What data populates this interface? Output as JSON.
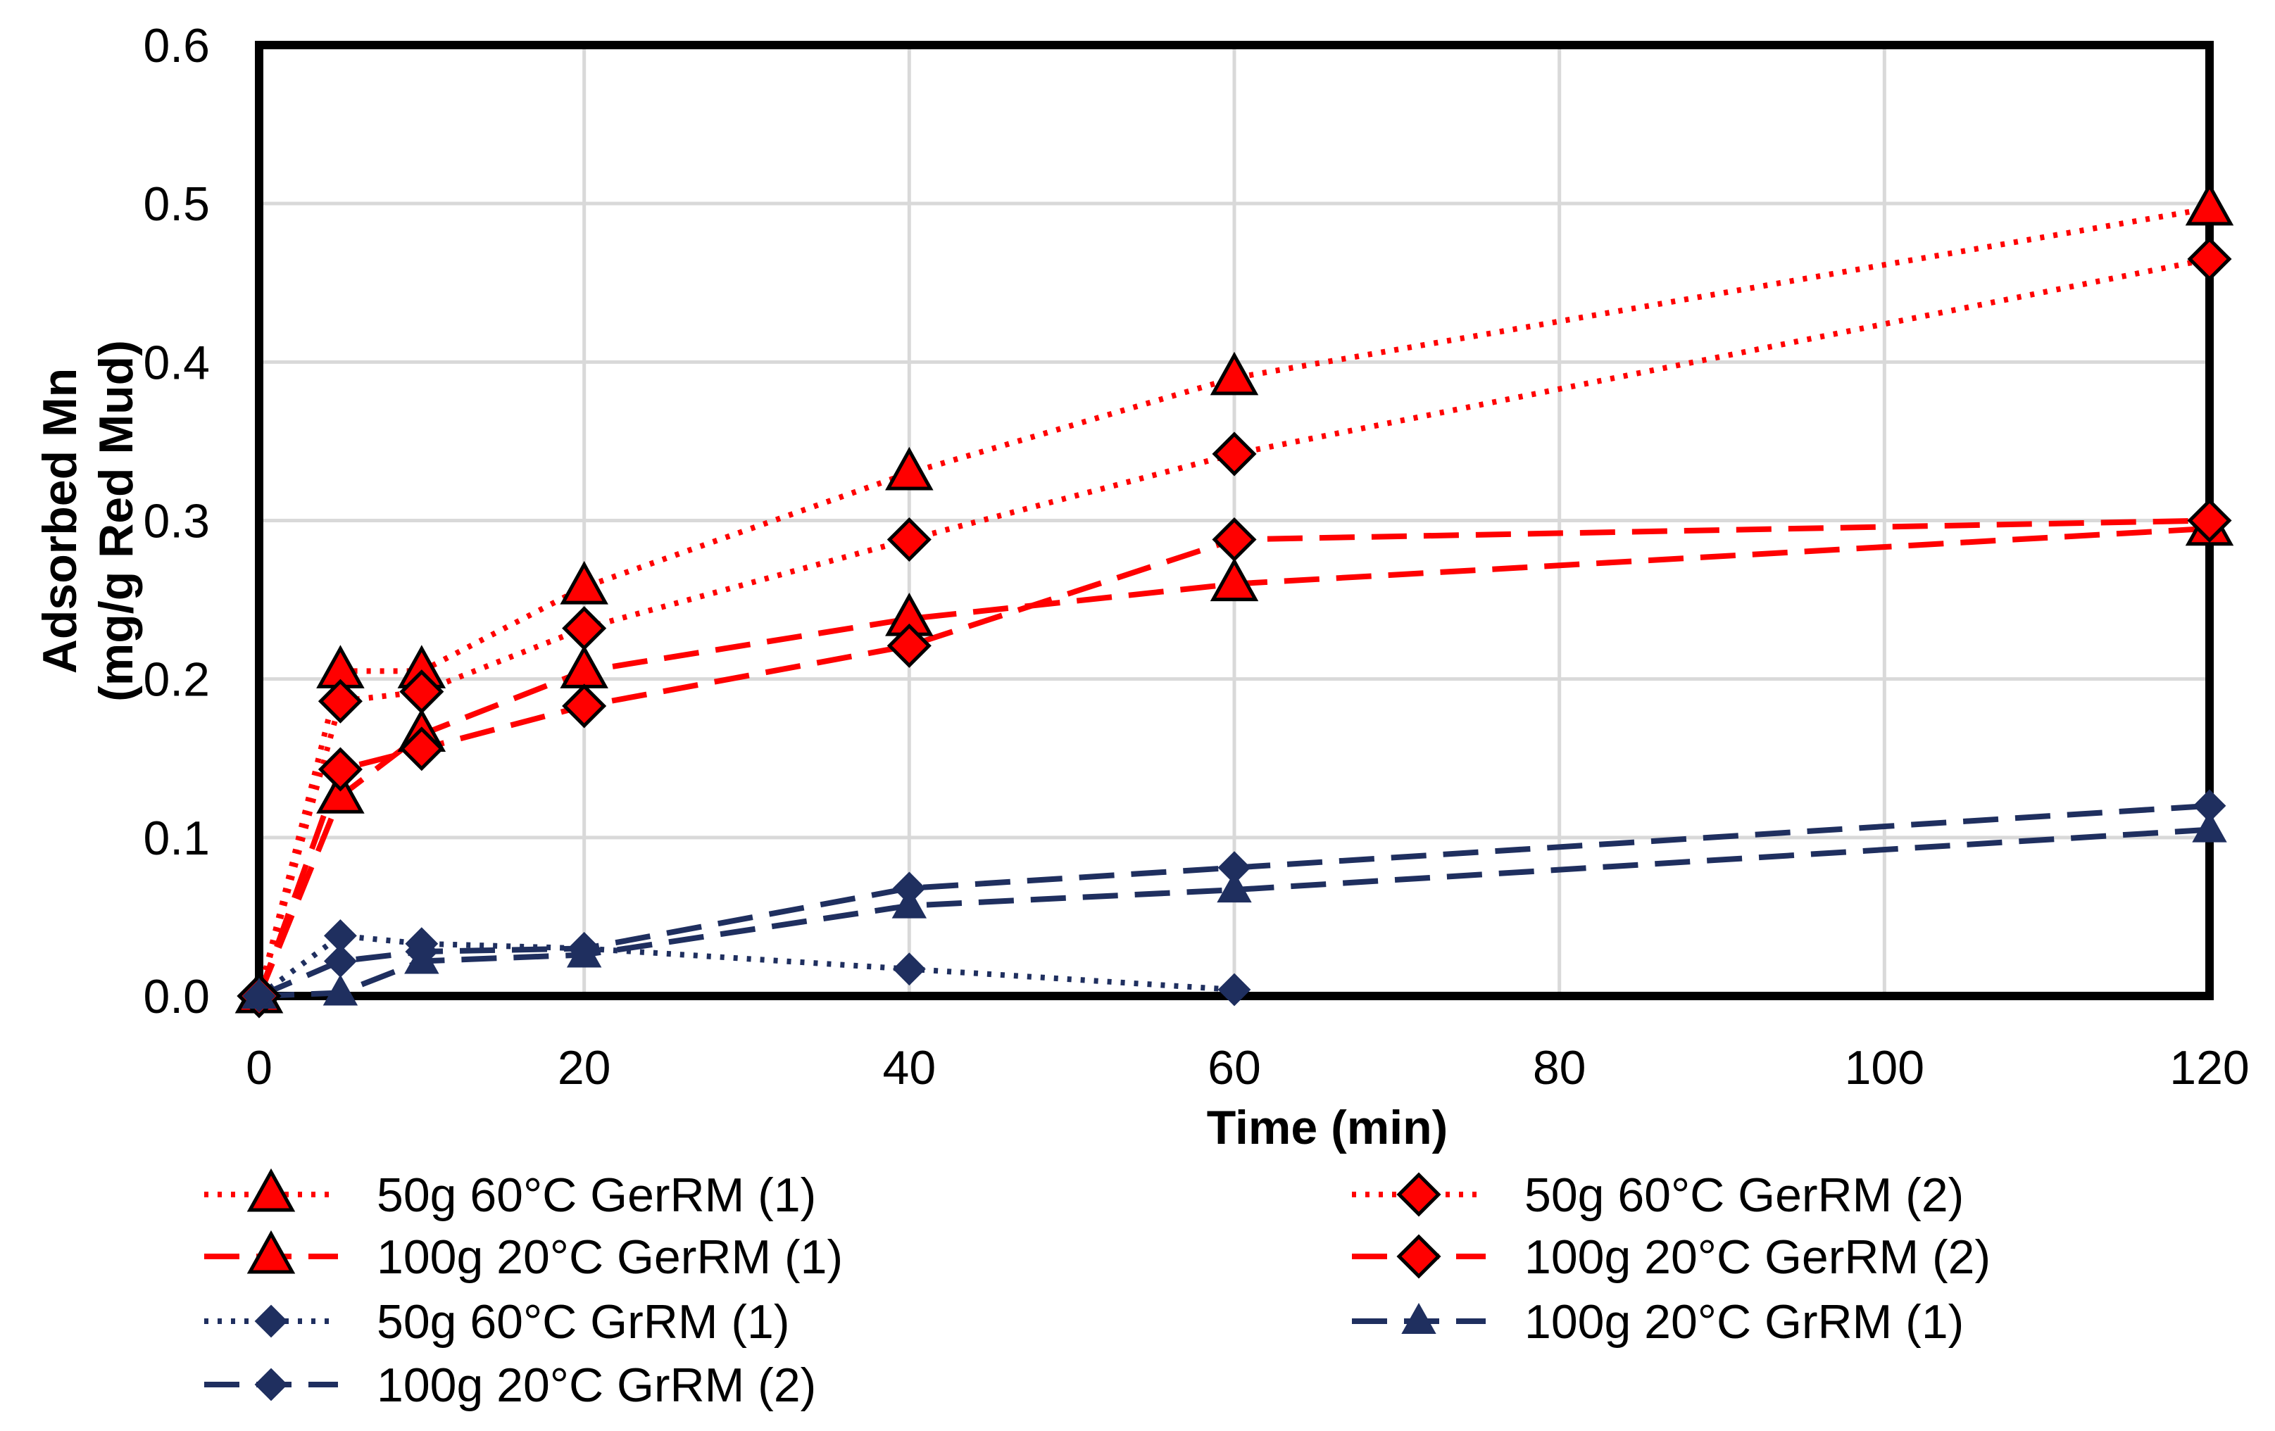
{
  "chart_data": {
    "type": "line",
    "title": "",
    "xlabel": "Time (min)",
    "ylabel_lines": [
      "Adsorbed Mn",
      "(mg/g Red Mud)"
    ],
    "xlim": [
      0,
      120
    ],
    "ylim": [
      0,
      0.6
    ],
    "x_ticks": [
      0,
      20,
      40,
      60,
      80,
      100,
      120
    ],
    "y_ticks": [
      0.0,
      0.1,
      0.2,
      0.3,
      0.4,
      0.5,
      0.6
    ],
    "y_tick_labels": [
      "0.0",
      "0.1",
      "0.2",
      "0.3",
      "0.4",
      "0.5",
      "0.6"
    ],
    "grid": true,
    "legend_position": "bottom",
    "series": [
      {
        "name": "50g 60°C GerRM (1)",
        "color": "#ff0000",
        "line": "dotted",
        "marker": "triangle",
        "x": [
          0,
          5,
          10,
          20,
          40,
          60,
          120
        ],
        "y": [
          0,
          0.205,
          0.205,
          0.258,
          0.33,
          0.39,
          0.497
        ]
      },
      {
        "name": "50g 60°C GerRM (2)",
        "color": "#ff0000",
        "line": "dotted",
        "marker": "diamond",
        "x": [
          0,
          5,
          10,
          20,
          40,
          60,
          120
        ],
        "y": [
          0,
          0.186,
          0.192,
          0.232,
          0.288,
          0.342,
          0.465
        ]
      },
      {
        "name": "100g 20°C GerRM (1)",
        "color": "#ff0000",
        "line": "dashed",
        "marker": "triangle",
        "x": [
          0,
          5,
          10,
          20,
          40,
          60,
          120
        ],
        "y": [
          0,
          0.126,
          0.165,
          0.205,
          0.238,
          0.26,
          0.295
        ]
      },
      {
        "name": "100g 20°C GerRM (2)",
        "color": "#ff0000",
        "line": "dashed",
        "marker": "diamond",
        "x": [
          0,
          5,
          10,
          20,
          40,
          60,
          120
        ],
        "y": [
          0,
          0.143,
          0.156,
          0.183,
          0.221,
          0.288,
          0.3
        ]
      },
      {
        "name": "50g 60°C GrRM (1)",
        "color": "#1f2f5f",
        "line": "dotted",
        "marker": "small-diamond",
        "x": [
          0,
          5,
          10,
          20,
          40,
          60
        ],
        "y": [
          0,
          0.038,
          0.033,
          0.03,
          0.017,
          0.004
        ]
      },
      {
        "name": "100g 20°C GrRM (1)",
        "color": "#1f2f5f",
        "line": "dashed",
        "marker": "small-triangle",
        "x": [
          0,
          5,
          10,
          20,
          40,
          60,
          120
        ],
        "y": [
          0,
          0.002,
          0.022,
          0.026,
          0.057,
          0.067,
          0.105
        ]
      },
      {
        "name": "100g 20°C GrRM (2)",
        "color": "#1f2f5f",
        "line": "dashed",
        "marker": "small-diamond",
        "x": [
          0,
          5,
          10,
          20,
          40,
          60,
          120
        ],
        "y": [
          0,
          0.022,
          0.028,
          0.03,
          0.068,
          0.081,
          0.12
        ]
      }
    ]
  }
}
